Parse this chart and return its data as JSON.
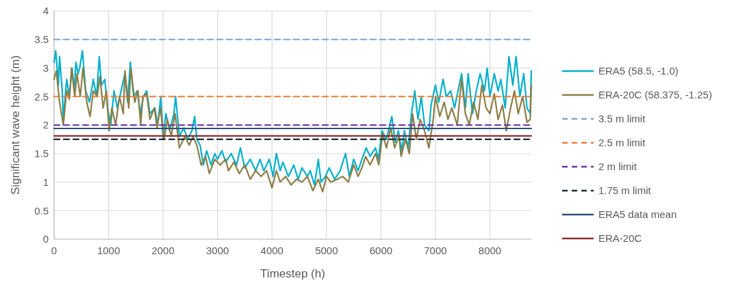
{
  "chart_data": {
    "type": "line",
    "xlabel": "Timestep (h)",
    "ylabel": "Significant wave height (m)",
    "xlim": [
      0,
      8760
    ],
    "xticks": [
      0,
      1000,
      2000,
      3000,
      4000,
      5000,
      6000,
      7000,
      8000
    ],
    "ylim": [
      0,
      4
    ],
    "yticks": [
      0,
      0.5,
      1,
      1.5,
      2,
      2.5,
      3,
      3.5,
      4
    ],
    "grid": true,
    "legend": "right",
    "line_style": "solid",
    "series": [
      {
        "name": "ERA5 (58.5, -1.0)",
        "color": "#00b0cc",
        "x": [
          0,
          30,
          80,
          100,
          150,
          170,
          230,
          280,
          330,
          370,
          400,
          440,
          470,
          520,
          580,
          650,
          720,
          780,
          830,
          870,
          930,
          980,
          1040,
          1100,
          1160,
          1230,
          1300,
          1350,
          1400,
          1460,
          1530,
          1580,
          1640,
          1700,
          1760,
          1850,
          1900,
          1960,
          2000,
          2050,
          2120,
          2200,
          2230,
          2300,
          2380,
          2450,
          2530,
          2580,
          2620,
          2680,
          2740,
          2800,
          2880,
          2950,
          3000,
          3080,
          3150,
          3250,
          3350,
          3420,
          3500,
          3600,
          3700,
          3780,
          3850,
          3950,
          4020,
          4080,
          4150,
          4200,
          4300,
          4400,
          4480,
          4550,
          4650,
          4700,
          4780,
          4850,
          4900,
          4980,
          5050,
          5150,
          5250,
          5350,
          5420,
          5500,
          5580,
          5650,
          5730,
          5800,
          5900,
          5950,
          6020,
          6100,
          6200,
          6260,
          6320,
          6380,
          6430,
          6500,
          6560,
          6620,
          6680,
          6740,
          6800,
          6880,
          6920,
          7000,
          7060,
          7140,
          7200,
          7280,
          7350,
          7480,
          7550,
          7600,
          7680,
          7750,
          7820,
          7900,
          7950,
          8000,
          8080,
          8150,
          8200,
          8280,
          8350,
          8420,
          8480,
          8550,
          8620,
          8680,
          8740,
          8760
        ],
        "values": [
          3.1,
          3.3,
          2.7,
          3.2,
          2.6,
          2.1,
          2.8,
          2.5,
          3.0,
          2.6,
          3.1,
          2.9,
          3.0,
          3.3,
          2.6,
          2.4,
          2.8,
          2.5,
          3.2,
          2.7,
          2.8,
          2.3,
          2.0,
          2.6,
          2.3,
          2.6,
          2.9,
          2.4,
          3.1,
          2.5,
          2.6,
          2.2,
          2.5,
          2.6,
          2.2,
          2.3,
          2.0,
          2.5,
          1.75,
          2.2,
          1.9,
          2.2,
          2.5,
          1.8,
          1.95,
          1.75,
          1.9,
          2.15,
          1.75,
          1.65,
          1.3,
          1.55,
          1.3,
          1.5,
          1.4,
          1.55,
          1.35,
          1.5,
          1.3,
          1.6,
          1.25,
          1.4,
          1.2,
          1.4,
          1.2,
          1.4,
          1.1,
          1.5,
          1.2,
          1.35,
          1.1,
          1.3,
          1.05,
          1.25,
          1.1,
          1.2,
          0.95,
          1.4,
          1.0,
          1.1,
          1.25,
          1.05,
          1.2,
          1.5,
          1.1,
          1.4,
          1.2,
          1.4,
          1.6,
          1.45,
          1.6,
          1.4,
          1.9,
          1.75,
          2.15,
          1.7,
          1.9,
          1.55,
          1.9,
          1.6,
          2.2,
          2.6,
          2.1,
          2.5,
          2.0,
          1.9,
          2.35,
          2.7,
          2.4,
          2.8,
          2.5,
          2.6,
          2.3,
          2.9,
          2.3,
          2.9,
          2.2,
          2.6,
          2.9,
          2.6,
          3.0,
          2.5,
          2.9,
          2.6,
          2.8,
          2.3,
          3.2,
          2.7,
          3.2,
          2.5,
          2.9,
          2.3,
          2.2,
          2.95
        ]
      },
      {
        "name": "ERA-20C (58.375, -1.25)",
        "color": "#8b7d45",
        "x": [
          0,
          40,
          100,
          170,
          230,
          280,
          320,
          380,
          420,
          480,
          530,
          600,
          660,
          720,
          790,
          840,
          900,
          960,
          1010,
          1060,
          1130,
          1200,
          1270,
          1300,
          1370,
          1410,
          1480,
          1540,
          1590,
          1630,
          1700,
          1760,
          1840,
          1890,
          1950,
          2020,
          2080,
          2150,
          2220,
          2300,
          2400,
          2480,
          2550,
          2620,
          2700,
          2780,
          2850,
          2950,
          3050,
          3150,
          3200,
          3300,
          3400,
          3500,
          3600,
          3700,
          3800,
          3900,
          4000,
          4080,
          4150,
          4250,
          4350,
          4450,
          4550,
          4650,
          4750,
          4850,
          4930,
          5000,
          5080,
          5200,
          5300,
          5400,
          5500,
          5580,
          5650,
          5720,
          5800,
          5900,
          5960,
          6030,
          6100,
          6180,
          6250,
          6330,
          6370,
          6450,
          6520,
          6580,
          6650,
          6720,
          6800,
          6880,
          6960,
          7000,
          7080,
          7160,
          7230,
          7300,
          7400,
          7480,
          7550,
          7620,
          7700,
          7780,
          7850,
          7930,
          8000,
          8080,
          8150,
          8230,
          8300,
          8380,
          8450,
          8520,
          8600,
          8680,
          8740,
          8760
        ],
        "values": [
          2.8,
          2.95,
          2.4,
          2.0,
          2.6,
          2.45,
          3.0,
          2.5,
          2.9,
          2.5,
          3.0,
          2.4,
          2.15,
          2.6,
          2.5,
          2.85,
          2.3,
          2.6,
          1.9,
          2.3,
          2.0,
          2.5,
          2.2,
          2.95,
          2.3,
          3.0,
          2.4,
          2.6,
          2.0,
          2.5,
          2.55,
          2.1,
          2.3,
          1.95,
          2.3,
          1.75,
          2.1,
          1.8,
          2.2,
          1.6,
          1.8,
          1.65,
          1.8,
          1.65,
          1.3,
          1.45,
          1.15,
          1.4,
          1.3,
          1.4,
          1.2,
          1.35,
          1.15,
          1.3,
          1.05,
          1.2,
          1.1,
          1.2,
          0.9,
          1.2,
          1.0,
          1.1,
          0.95,
          1.05,
          1.0,
          1.1,
          0.85,
          1.05,
          0.83,
          1.1,
          1.0,
          1.05,
          1.1,
          1.0,
          1.3,
          1.1,
          1.25,
          1.45,
          1.3,
          1.5,
          1.3,
          1.85,
          1.6,
          1.95,
          1.6,
          1.8,
          1.45,
          1.75,
          1.5,
          2.2,
          1.75,
          2.1,
          1.9,
          1.6,
          2.1,
          2.5,
          2.15,
          2.4,
          2.1,
          2.3,
          2.0,
          2.8,
          2.2,
          2.0,
          2.4,
          2.1,
          2.7,
          2.3,
          2.2,
          2.55,
          2.1,
          2.35,
          1.9,
          2.3,
          2.6,
          2.2,
          2.5,
          2.05,
          2.1,
          2.7
        ]
      },
      {
        "name": "3.5 m limit",
        "color": "#7aa6cf",
        "line_style": "dashed",
        "x": [
          0,
          8760
        ],
        "values": [
          3.5,
          3.5
        ]
      },
      {
        "name": "2.5 m limit",
        "color": "#ed7d31",
        "line_style": "dashed",
        "x": [
          0,
          8760
        ],
        "values": [
          2.5,
          2.5
        ]
      },
      {
        "name": "2 m limit",
        "color": "#7030a0",
        "line_style": "dashed",
        "x": [
          0,
          8760
        ],
        "values": [
          2,
          2
        ]
      },
      {
        "name": "1.75 m limit",
        "color": "#1f2a36",
        "line_style": "dashed",
        "x": [
          0,
          8760
        ],
        "values": [
          1.75,
          1.75
        ]
      },
      {
        "name": "ERA5 data mean",
        "color": "#2f4f7f",
        "x": [
          0,
          8760
        ],
        "values": [
          1.94,
          1.94
        ]
      },
      {
        "name": "ERA-20C",
        "color": "#8b2e2e",
        "x": [
          0,
          8760
        ],
        "values": [
          1.81,
          1.81
        ]
      }
    ]
  }
}
